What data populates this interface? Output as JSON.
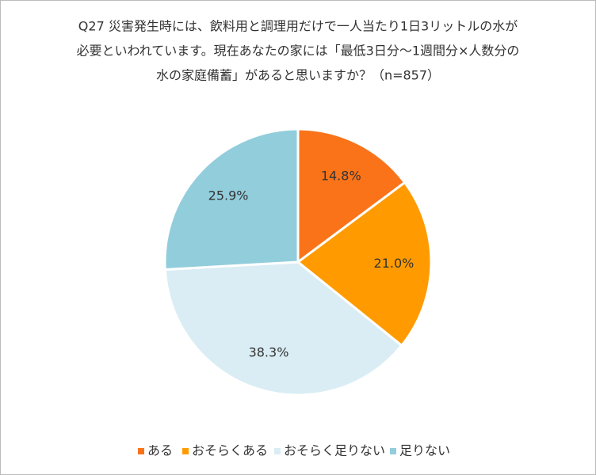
{
  "chart_data": {
    "type": "pie",
    "title": [
      "Q27 災害発生時には、飲料用と調理用だけで一人当たり1日3リットルの水が",
      "必要といわれています。現在あなたの家には「最低3日分～1週間分×人数分の",
      "水の家庭備蓄」があると思いますか？（n=857）"
    ],
    "categories": [
      "ある",
      "おそらくある",
      "おそらく足りない",
      "足りない"
    ],
    "values": [
      14.8,
      21.0,
      38.3,
      25.9
    ],
    "value_labels": [
      "14.8%",
      "21.0%",
      "38.3%",
      "25.9%"
    ],
    "colors": [
      "#fa7319",
      "#ff9b00",
      "#daedf4",
      "#92cddc"
    ],
    "legend": "bottom"
  }
}
